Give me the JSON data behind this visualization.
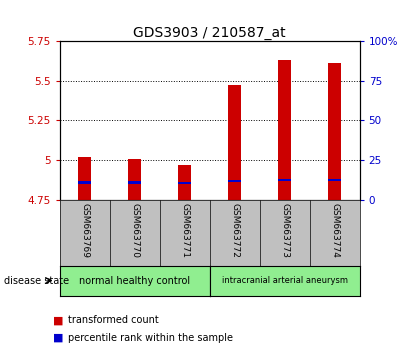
{
  "title": "GDS3903 / 210587_at",
  "samples": [
    "GSM663769",
    "GSM663770",
    "GSM663771",
    "GSM663772",
    "GSM663773",
    "GSM663774"
  ],
  "bar_bottoms": [
    4.75,
    4.75,
    4.75,
    4.75,
    4.75,
    4.75
  ],
  "bar_tops": [
    5.02,
    5.01,
    4.97,
    5.47,
    5.63,
    5.61
  ],
  "percentile_values": [
    4.86,
    4.86,
    4.855,
    4.872,
    4.876,
    4.876
  ],
  "ylim_left": [
    4.75,
    5.75
  ],
  "ylim_right": [
    0,
    100
  ],
  "yticks_left": [
    4.75,
    5.0,
    5.25,
    5.5,
    5.75
  ],
  "yticks_right": [
    0,
    25,
    50,
    75,
    100
  ],
  "ytick_labels_left": [
    "4.75",
    "5",
    "5.25",
    "5.5",
    "5.75"
  ],
  "ytick_labels_right": [
    "0",
    "25",
    "50",
    "75",
    "100%"
  ],
  "bar_color": "#cc0000",
  "percentile_color": "#0000cc",
  "bar_width": 0.25,
  "group1_label": "normal healthy control",
  "group2_label": "intracranial arterial aneurysm",
  "group1_color": "#90ee90",
  "group2_color": "#90ee90",
  "disease_state_label": "disease state",
  "legend_red_label": "transformed count",
  "legend_blue_label": "percentile rank within the sample",
  "tick_area_color": "#c0c0c0",
  "title_fontsize": 10,
  "axis_fontsize": 7.5,
  "sample_fontsize": 6.5,
  "group_fontsize": 7,
  "legend_fontsize": 7
}
